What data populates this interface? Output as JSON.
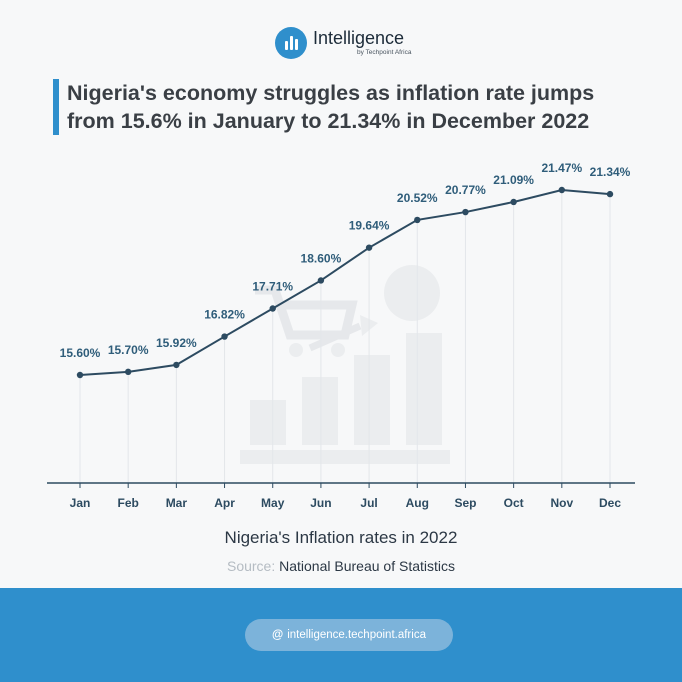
{
  "brand": {
    "name": "Intelligence",
    "sub": "by Techpoint Africa"
  },
  "title_line1": "Nigeria's economy struggles as inflation rate jumps",
  "title_line2": "from 15.6% in January to 21.34% in December 2022",
  "chart_data": {
    "type": "line",
    "categories": [
      "Jan",
      "Feb",
      "Mar",
      "Apr",
      "May",
      "Jun",
      "Jul",
      "Aug",
      "Sep",
      "Oct",
      "Nov",
      "Dec"
    ],
    "values": [
      15.6,
      15.7,
      15.92,
      16.82,
      17.71,
      18.6,
      19.64,
      20.52,
      20.77,
      21.09,
      21.47,
      21.34
    ],
    "data_labels": [
      "15.60%",
      "15.70%",
      "15.92%",
      "16.82%",
      "17.71%",
      "18.60%",
      "19.64%",
      "20.52%",
      "20.77%",
      "21.09%",
      "21.47%",
      "21.34%"
    ],
    "title": "Nigeria's Inflation rates in 2022",
    "xlabel": "",
    "ylabel": "",
    "ylim": [
      10,
      22
    ],
    "grid": false,
    "color": "#2d4b61"
  },
  "source_label": "Source:",
  "source_text": "National Bureau of Statistics",
  "footer": {
    "url": "intelligence.techpoint.africa"
  },
  "colors": {
    "accent": "#2f8fcc",
    "line": "#2d4b61",
    "label": "#2f5d7a"
  }
}
